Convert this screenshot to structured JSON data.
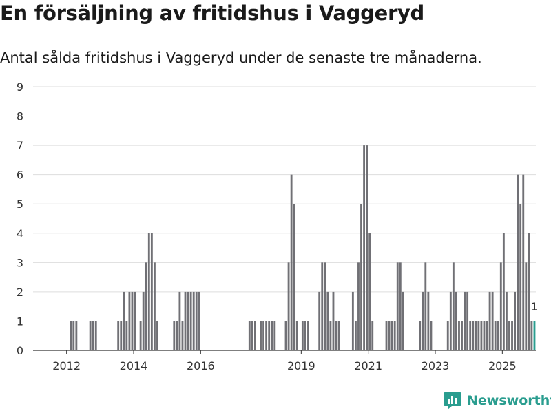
{
  "title": "En försäljning av fritidshus i Vaggeryd",
  "subtitle": "Antal sålda fritidshus i Vaggeryd under de senaste tre månaderna.",
  "brand": "Newsworthy",
  "colors": {
    "bar": "#707075",
    "highlight": "#2a9d8f",
    "grid": "#dddddd",
    "axis": "#333333"
  },
  "chart_data": {
    "type": "bar",
    "title": "En försäljning av fritidshus i Vaggeryd",
    "xlabel": "",
    "ylabel": "",
    "ylim": [
      0,
      9
    ],
    "yticks": [
      0,
      1,
      2,
      3,
      4,
      5,
      6,
      7,
      8,
      9
    ],
    "x_start": "2011-01",
    "x_end": "2025-12",
    "xticks": [
      {
        "label": "2012",
        "year": 2012
      },
      {
        "label": "2014",
        "year": 2014
      },
      {
        "label": "2016",
        "year": 2016
      },
      {
        "label": "2019",
        "year": 2019
      },
      {
        "label": "2021",
        "year": 2021
      },
      {
        "label": "2023",
        "year": 2023
      },
      {
        "label": "2025",
        "year": 2025
      }
    ],
    "series": [
      {
        "name": "Antal sålda fritidshus (rullande tre månader)",
        "values": [
          {
            "x": "2012-02",
            "y": 1
          },
          {
            "x": "2012-03",
            "y": 1
          },
          {
            "x": "2012-04",
            "y": 1
          },
          {
            "x": "2012-09",
            "y": 1
          },
          {
            "x": "2012-10",
            "y": 1
          },
          {
            "x": "2012-11",
            "y": 1
          },
          {
            "x": "2013-07",
            "y": 1
          },
          {
            "x": "2013-08",
            "y": 1
          },
          {
            "x": "2013-09",
            "y": 2
          },
          {
            "x": "2013-10",
            "y": 1
          },
          {
            "x": "2013-11",
            "y": 2
          },
          {
            "x": "2013-12",
            "y": 2
          },
          {
            "x": "2014-01",
            "y": 2
          },
          {
            "x": "2014-03",
            "y": 1
          },
          {
            "x": "2014-04",
            "y": 2
          },
          {
            "x": "2014-05",
            "y": 3
          },
          {
            "x": "2014-06",
            "y": 4
          },
          {
            "x": "2014-07",
            "y": 4
          },
          {
            "x": "2014-08",
            "y": 3
          },
          {
            "x": "2014-09",
            "y": 1
          },
          {
            "x": "2015-03",
            "y": 1
          },
          {
            "x": "2015-04",
            "y": 1
          },
          {
            "x": "2015-05",
            "y": 2
          },
          {
            "x": "2015-06",
            "y": 1
          },
          {
            "x": "2015-07",
            "y": 2
          },
          {
            "x": "2015-08",
            "y": 2
          },
          {
            "x": "2015-09",
            "y": 2
          },
          {
            "x": "2015-10",
            "y": 2
          },
          {
            "x": "2015-11",
            "y": 2
          },
          {
            "x": "2015-12",
            "y": 2
          },
          {
            "x": "2017-06",
            "y": 1
          },
          {
            "x": "2017-07",
            "y": 1
          },
          {
            "x": "2017-08",
            "y": 1
          },
          {
            "x": "2017-10",
            "y": 1
          },
          {
            "x": "2017-11",
            "y": 1
          },
          {
            "x": "2017-12",
            "y": 1
          },
          {
            "x": "2018-01",
            "y": 1
          },
          {
            "x": "2018-02",
            "y": 1
          },
          {
            "x": "2018-03",
            "y": 1
          },
          {
            "x": "2018-07",
            "y": 1
          },
          {
            "x": "2018-08",
            "y": 3
          },
          {
            "x": "2018-09",
            "y": 6
          },
          {
            "x": "2018-10",
            "y": 5
          },
          {
            "x": "2018-11",
            "y": 1
          },
          {
            "x": "2019-01",
            "y": 1
          },
          {
            "x": "2019-02",
            "y": 1
          },
          {
            "x": "2019-03",
            "y": 1
          },
          {
            "x": "2019-07",
            "y": 2
          },
          {
            "x": "2019-08",
            "y": 3
          },
          {
            "x": "2019-09",
            "y": 3
          },
          {
            "x": "2019-10",
            "y": 2
          },
          {
            "x": "2019-11",
            "y": 1
          },
          {
            "x": "2019-12",
            "y": 2
          },
          {
            "x": "2020-01",
            "y": 1
          },
          {
            "x": "2020-02",
            "y": 1
          },
          {
            "x": "2020-07",
            "y": 2
          },
          {
            "x": "2020-08",
            "y": 1
          },
          {
            "x": "2020-09",
            "y": 3
          },
          {
            "x": "2020-10",
            "y": 5
          },
          {
            "x": "2020-11",
            "y": 7
          },
          {
            "x": "2020-12",
            "y": 7
          },
          {
            "x": "2021-01",
            "y": 4
          },
          {
            "x": "2021-02",
            "y": 1
          },
          {
            "x": "2021-07",
            "y": 1
          },
          {
            "x": "2021-08",
            "y": 1
          },
          {
            "x": "2021-09",
            "y": 1
          },
          {
            "x": "2021-10",
            "y": 1
          },
          {
            "x": "2021-11",
            "y": 3
          },
          {
            "x": "2021-12",
            "y": 3
          },
          {
            "x": "2022-01",
            "y": 2
          },
          {
            "x": "2022-07",
            "y": 1
          },
          {
            "x": "2022-08",
            "y": 2
          },
          {
            "x": "2022-09",
            "y": 3
          },
          {
            "x": "2022-10",
            "y": 2
          },
          {
            "x": "2022-11",
            "y": 1
          },
          {
            "x": "2023-05",
            "y": 1
          },
          {
            "x": "2023-06",
            "y": 2
          },
          {
            "x": "2023-07",
            "y": 3
          },
          {
            "x": "2023-08",
            "y": 2
          },
          {
            "x": "2023-09",
            "y": 1
          },
          {
            "x": "2023-10",
            "y": 1
          },
          {
            "x": "2023-11",
            "y": 2
          },
          {
            "x": "2023-12",
            "y": 2
          },
          {
            "x": "2024-01",
            "y": 1
          },
          {
            "x": "2024-02",
            "y": 1
          },
          {
            "x": "2024-03",
            "y": 1
          },
          {
            "x": "2024-04",
            "y": 1
          },
          {
            "x": "2024-05",
            "y": 1
          },
          {
            "x": "2024-06",
            "y": 1
          },
          {
            "x": "2024-07",
            "y": 1
          },
          {
            "x": "2024-08",
            "y": 2
          },
          {
            "x": "2024-09",
            "y": 2
          },
          {
            "x": "2024-10",
            "y": 1
          },
          {
            "x": "2024-11",
            "y": 1
          },
          {
            "x": "2024-12",
            "y": 3
          },
          {
            "x": "2025-01",
            "y": 4
          },
          {
            "x": "2025-02",
            "y": 2
          },
          {
            "x": "2025-03",
            "y": 1
          },
          {
            "x": "2025-04",
            "y": 1
          },
          {
            "x": "2025-05",
            "y": 2
          },
          {
            "x": "2025-06",
            "y": 6
          },
          {
            "x": "2025-07",
            "y": 5
          },
          {
            "x": "2025-08",
            "y": 6
          },
          {
            "x": "2025-09",
            "y": 3
          },
          {
            "x": "2025-10",
            "y": 4
          },
          {
            "x": "2025-11",
            "y": 1
          },
          {
            "x": "2025-12",
            "y": 1
          }
        ]
      }
    ],
    "highlight": {
      "x": "2025-12",
      "y": 1,
      "label": "1"
    }
  }
}
